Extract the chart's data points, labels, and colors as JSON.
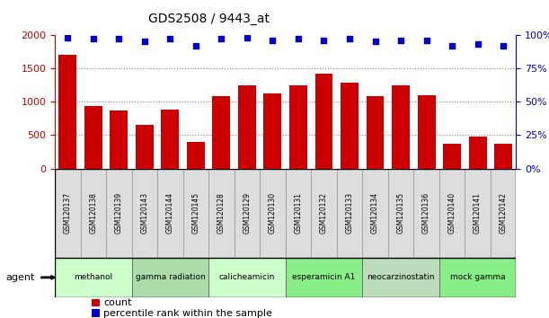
{
  "title": "GDS2508 / 9443_at",
  "samples": [
    "GSM120137",
    "GSM120138",
    "GSM120139",
    "GSM120143",
    "GSM120144",
    "GSM120145",
    "GSM120128",
    "GSM120129",
    "GSM120130",
    "GSM120131",
    "GSM120132",
    "GSM120133",
    "GSM120134",
    "GSM120135",
    "GSM120136",
    "GSM120140",
    "GSM120141",
    "GSM120142"
  ],
  "counts": [
    1700,
    940,
    870,
    660,
    880,
    400,
    1090,
    1240,
    1120,
    1250,
    1420,
    1290,
    1090,
    1240,
    1100,
    370,
    480,
    370
  ],
  "percentiles": [
    98,
    97,
    97,
    95,
    97,
    92,
    97,
    98,
    96,
    97,
    96,
    97,
    95,
    96,
    96,
    92,
    93,
    92
  ],
  "bar_color": "#cc0000",
  "dot_color": "#0000cc",
  "ylim_left": [
    0,
    2000
  ],
  "ylim_right": [
    0,
    100
  ],
  "yticks_left": [
    0,
    500,
    1000,
    1500,
    2000
  ],
  "ytick_labels_left": [
    "0",
    "500",
    "1000",
    "1500",
    "2000"
  ],
  "yticks_right": [
    0,
    25,
    50,
    75,
    100
  ],
  "ytick_labels_right": [
    "0%",
    "25%",
    "50%",
    "75%",
    "100%"
  ],
  "agents": [
    {
      "label": "methanol",
      "start": 0,
      "end": 3,
      "color": "#ccffcc"
    },
    {
      "label": "gamma radiation",
      "start": 3,
      "end": 6,
      "color": "#aaddaa"
    },
    {
      "label": "calicheamicin",
      "start": 6,
      "end": 9,
      "color": "#ccffcc"
    },
    {
      "label": "esperamicin A1",
      "start": 9,
      "end": 12,
      "color": "#88ee88"
    },
    {
      "label": "neocarzinostatin",
      "start": 12,
      "end": 15,
      "color": "#bbddbb"
    },
    {
      "label": "mock gamma",
      "start": 15,
      "end": 18,
      "color": "#88ee88"
    }
  ],
  "sample_box_color": "#dddddd",
  "background_color": "#ffffff",
  "plot_bg_color": "#ffffff",
  "left_axis_color": "#cc0000",
  "right_axis_color": "#0000cc",
  "legend_count_label": "count",
  "legend_pct_label": "percentile rank within the sample",
  "agent_label": "agent"
}
